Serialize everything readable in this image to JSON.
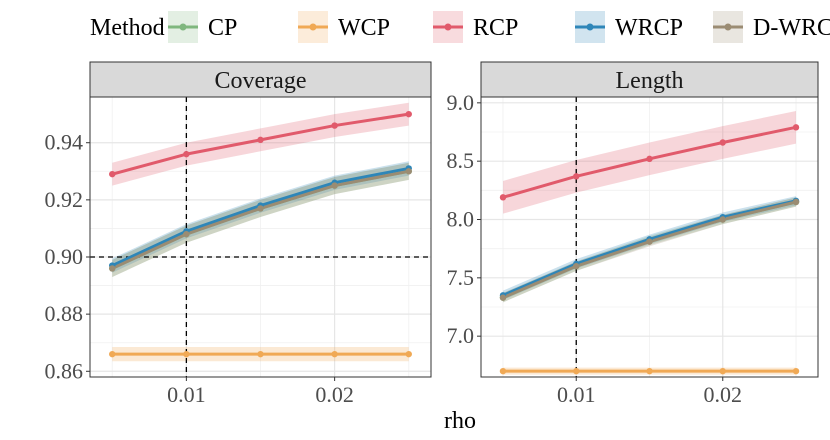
{
  "legend": {
    "title": "Method",
    "items": [
      {
        "name": "CP",
        "color": "#7fb77e"
      },
      {
        "name": "WCP",
        "color": "#f0a955"
      },
      {
        "name": "RCP",
        "color": "#e15a6b"
      },
      {
        "name": "WRCP",
        "color": "#2e86b8"
      },
      {
        "name": "D-WRCP",
        "color": "#9b8c73"
      }
    ]
  },
  "chart_data": {
    "type": "line",
    "xlabel": "rho",
    "x": [
      0.005,
      0.01,
      0.015,
      0.02,
      0.025
    ],
    "xlim": [
      0.0035,
      0.0265
    ],
    "xticks": [
      0.01,
      0.02
    ],
    "xtick_labels": [
      "0.01",
      "0.02"
    ],
    "vline_x": 0.01,
    "panels": [
      {
        "title": "Coverage",
        "ylim": [
          0.858,
          0.956
        ],
        "yticks": [
          0.86,
          0.88,
          0.9,
          0.92,
          0.94
        ],
        "ytick_labels": [
          "0.86",
          "0.88",
          "0.90",
          "0.92",
          "0.94"
        ],
        "hline_y": 0.9,
        "series": [
          {
            "name": "CP",
            "values": [
              0.896,
              0.908,
              0.917,
              0.925,
              0.93
            ],
            "band": 0.003
          },
          {
            "name": "WCP",
            "values": [
              0.866,
              0.866,
              0.866,
              0.866,
              0.866
            ],
            "band": 0.0025
          },
          {
            "name": "RCP",
            "values": [
              0.929,
              0.936,
              0.941,
              0.946,
              0.95
            ],
            "band": 0.004
          },
          {
            "name": "WRCP",
            "values": [
              0.897,
              0.909,
              0.918,
              0.926,
              0.931
            ],
            "band": 0.0025
          },
          {
            "name": "D-WRCP",
            "values": [
              0.896,
              0.908,
              0.917,
              0.925,
              0.93
            ],
            "band": 0.003
          }
        ]
      },
      {
        "title": "Length",
        "ylim": [
          6.65,
          9.05
        ],
        "yticks": [
          7.0,
          7.5,
          8.0,
          8.5,
          9.0
        ],
        "ytick_labels": [
          "7.0",
          "7.5",
          "8.0",
          "8.5",
          "9.0"
        ],
        "hline_y": null,
        "series": [
          {
            "name": "CP",
            "values": [
              7.33,
              7.6,
              7.82,
              8.0,
              8.15
            ],
            "band": 0.04
          },
          {
            "name": "WCP",
            "values": [
              6.7,
              6.7,
              6.7,
              6.7,
              6.7
            ],
            "band": 0.03
          },
          {
            "name": "RCP",
            "values": [
              8.19,
              8.37,
              8.52,
              8.66,
              8.79
            ],
            "band": 0.14
          },
          {
            "name": "WRCP",
            "values": [
              7.35,
              7.62,
              7.83,
              8.02,
              8.16
            ],
            "band": 0.04
          },
          {
            "name": "D-WRCP",
            "values": [
              7.33,
              7.6,
              7.81,
              8.0,
              8.15
            ],
            "band": 0.04
          }
        ]
      }
    ]
  }
}
